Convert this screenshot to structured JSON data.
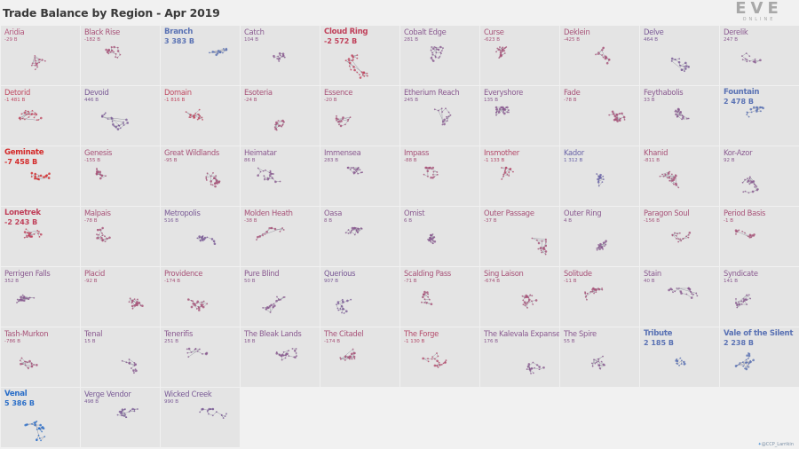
{
  "title": "Trade Balance by Region - Apr 2019",
  "logo": {
    "mark": "EVE",
    "sub": "ONLINE"
  },
  "credit": "@CCP_Larrikin",
  "regions": [
    {
      "name": "Aridia",
      "value": "-29 B",
      "color": "#b45a7e"
    },
    {
      "name": "Black Rise",
      "value": "-182 B",
      "color": "#a85278"
    },
    {
      "name": "Branch",
      "value": "3 383 B",
      "color": "#5a72b4",
      "big": true
    },
    {
      "name": "Catch",
      "value": "104 B",
      "color": "#8a5a90"
    },
    {
      "name": "Cloud Ring",
      "value": "-2 572 B",
      "color": "#c0405a",
      "big": true
    },
    {
      "name": "Cobalt Edge",
      "value": "281 B",
      "color": "#8a5a90"
    },
    {
      "name": "Curse",
      "value": "-623 B",
      "color": "#a85278"
    },
    {
      "name": "Deklein",
      "value": "-425 B",
      "color": "#a85278"
    },
    {
      "name": "Delve",
      "value": "464 B",
      "color": "#7a5a96"
    },
    {
      "name": "Derelik",
      "value": "247 B",
      "color": "#8a5a90"
    },
    {
      "name": "Detorid",
      "value": "-1 481 B",
      "color": "#c04a62"
    },
    {
      "name": "Devoid",
      "value": "446 B",
      "color": "#7a5a96"
    },
    {
      "name": "Domain",
      "value": "-1 816 B",
      "color": "#c04a62"
    },
    {
      "name": "Esoteria",
      "value": "-24 B",
      "color": "#a85278"
    },
    {
      "name": "Essence",
      "value": "-20 B",
      "color": "#a85278"
    },
    {
      "name": "Etherium Reach",
      "value": "245 B",
      "color": "#8a5a90"
    },
    {
      "name": "Everyshore",
      "value": "135 B",
      "color": "#8a5a90"
    },
    {
      "name": "Fade",
      "value": "-78 B",
      "color": "#a85278"
    },
    {
      "name": "Feythabolis",
      "value": "33 B",
      "color": "#8a5a90"
    },
    {
      "name": "Fountain",
      "value": "2 478 B",
      "color": "#5a72b4",
      "big": true
    },
    {
      "name": "Geminate",
      "value": "-7 458 B",
      "color": "#d42a2a",
      "big": true
    },
    {
      "name": "Genesis",
      "value": "-155 B",
      "color": "#a85278"
    },
    {
      "name": "Great Wildlands",
      "value": "-95 B",
      "color": "#a85278"
    },
    {
      "name": "Heimatar",
      "value": "86 B",
      "color": "#8a5a90"
    },
    {
      "name": "Immensea",
      "value": "283 B",
      "color": "#8a5a90"
    },
    {
      "name": "Impass",
      "value": "-88 B",
      "color": "#a85278"
    },
    {
      "name": "Insmother",
      "value": "-1 133 B",
      "color": "#b44a6a"
    },
    {
      "name": "Kador",
      "value": "1 312 B",
      "color": "#6a64a8"
    },
    {
      "name": "Khanid",
      "value": "-811 B",
      "color": "#a85278"
    },
    {
      "name": "Kor-Azor",
      "value": "92 B",
      "color": "#8a5a90"
    },
    {
      "name": "Lonetrek",
      "value": "-2 243 B",
      "color": "#c0405a",
      "big": true
    },
    {
      "name": "Malpais",
      "value": "-78 B",
      "color": "#a85278"
    },
    {
      "name": "Metropolis",
      "value": "516 B",
      "color": "#7a5a96"
    },
    {
      "name": "Molden Heath",
      "value": "-38 B",
      "color": "#a85278"
    },
    {
      "name": "Oasa",
      "value": "8 B",
      "color": "#8a5a90"
    },
    {
      "name": "Omist",
      "value": "6 B",
      "color": "#8a5a90"
    },
    {
      "name": "Outer Passage",
      "value": "-37 B",
      "color": "#a85278"
    },
    {
      "name": "Outer Ring",
      "value": "4 B",
      "color": "#8a5a90"
    },
    {
      "name": "Paragon Soul",
      "value": "-156 B",
      "color": "#a85278"
    },
    {
      "name": "Period Basis",
      "value": "-1 B",
      "color": "#a85278"
    },
    {
      "name": "Perrigen Falls",
      "value": "352 B",
      "color": "#8a5a90"
    },
    {
      "name": "Placid",
      "value": "-92 B",
      "color": "#a85278"
    },
    {
      "name": "Providence",
      "value": "-174 B",
      "color": "#a85278"
    },
    {
      "name": "Pure Blind",
      "value": "50 B",
      "color": "#8a5a90"
    },
    {
      "name": "Querious",
      "value": "907 B",
      "color": "#7a5a96"
    },
    {
      "name": "Scalding Pass",
      "value": "-71 B",
      "color": "#a85278"
    },
    {
      "name": "Sing Laison",
      "value": "-674 B",
      "color": "#a85278"
    },
    {
      "name": "Solitude",
      "value": "-11 B",
      "color": "#a85278"
    },
    {
      "name": "Stain",
      "value": "40 B",
      "color": "#8a5a90"
    },
    {
      "name": "Syndicate",
      "value": "141 B",
      "color": "#8a5a90"
    },
    {
      "name": "Tash-Murkon",
      "value": "-786 B",
      "color": "#a85278"
    },
    {
      "name": "Tenal",
      "value": "15 B",
      "color": "#8a5a90"
    },
    {
      "name": "Tenerifis",
      "value": "251 B",
      "color": "#8a5a90"
    },
    {
      "name": "The Bleak Lands",
      "value": "18 B",
      "color": "#8a5a90"
    },
    {
      "name": "The Citadel",
      "value": "-174 B",
      "color": "#a85278"
    },
    {
      "name": "The Forge",
      "value": "-1 130 B",
      "color": "#b44a6a"
    },
    {
      "name": "The Kalevala Expanse",
      "value": "176 B",
      "color": "#8a5a90"
    },
    {
      "name": "The Spire",
      "value": "55 B",
      "color": "#8a5a90"
    },
    {
      "name": "Tribute",
      "value": "2 185 B",
      "color": "#5a72b4",
      "big": true
    },
    {
      "name": "Vale of the Silent",
      "value": "2 238 B",
      "color": "#5a72b4",
      "big": true
    },
    {
      "name": "Venal",
      "value": "5 386 B",
      "color": "#2a6ec8",
      "big": true
    },
    {
      "name": "Verge Vendor",
      "value": "498 B",
      "color": "#7a5a96"
    },
    {
      "name": "Wicked Creek",
      "value": "990 B",
      "color": "#7a5a96"
    }
  ]
}
